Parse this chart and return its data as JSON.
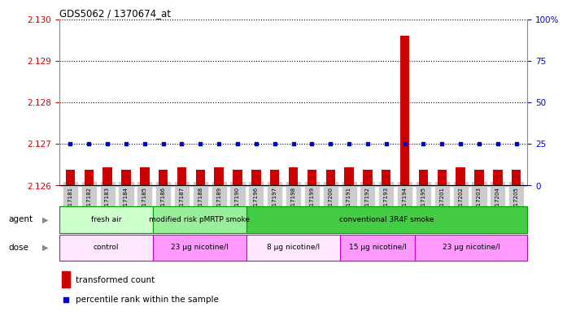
{
  "title": "GDS5062 / 1370674_at",
  "samples": [
    "GSM1217181",
    "GSM1217182",
    "GSM1217183",
    "GSM1217184",
    "GSM1217185",
    "GSM1217186",
    "GSM1217187",
    "GSM1217188",
    "GSM1217189",
    "GSM1217190",
    "GSM1217196",
    "GSM1217197",
    "GSM1217198",
    "GSM1217199",
    "GSM1217200",
    "GSM1217191",
    "GSM1217192",
    "GSM1217193",
    "GSM1217194",
    "GSM1217195",
    "GSM1217201",
    "GSM1217202",
    "GSM1217203",
    "GSM1217204",
    "GSM1217205"
  ],
  "transformed_count": [
    2.12638,
    2.12638,
    2.12643,
    2.12638,
    2.12643,
    2.12638,
    2.12643,
    2.12638,
    2.12643,
    2.12638,
    2.12638,
    2.12638,
    2.12643,
    2.12638,
    2.12638,
    2.12643,
    2.12638,
    2.12638,
    2.1296,
    2.12638,
    2.12638,
    2.12643,
    2.12638,
    2.12638,
    2.12638
  ],
  "percentile_rank": [
    25,
    25,
    25,
    25,
    25,
    25,
    25,
    25,
    25,
    25,
    25,
    25,
    25,
    25,
    25,
    25,
    25,
    25,
    25,
    25,
    25,
    25,
    25,
    25,
    25
  ],
  "ylim_left": [
    2.126,
    2.13
  ],
  "ylim_right": [
    0,
    100
  ],
  "yticks_left": [
    2.126,
    2.127,
    2.128,
    2.129,
    2.13
  ],
  "yticks_right": [
    0,
    25,
    50,
    75,
    100
  ],
  "baseline": 2.126,
  "agent_groups": [
    {
      "label": "fresh air",
      "start": 0,
      "end": 5,
      "color": "#CCFFCC"
    },
    {
      "label": "modified risk pMRTP smoke",
      "start": 5,
      "end": 10,
      "color": "#99EE99"
    },
    {
      "label": "conventional 3R4F smoke",
      "start": 10,
      "end": 25,
      "color": "#44CC44"
    }
  ],
  "dose_groups": [
    {
      "label": "control",
      "start": 0,
      "end": 5,
      "color": "#FFE8FF"
    },
    {
      "label": "23 μg nicotine/l",
      "start": 5,
      "end": 10,
      "color": "#FF99FF"
    },
    {
      "label": "8 μg nicotine/l",
      "start": 10,
      "end": 15,
      "color": "#FFE8FF"
    },
    {
      "label": "15 μg nicotine/l",
      "start": 15,
      "end": 19,
      "color": "#FF99FF"
    },
    {
      "label": "23 μg nicotine/l",
      "start": 19,
      "end": 25,
      "color": "#FF99FF"
    }
  ],
  "bar_color": "#CC0000",
  "dot_color": "#0000CC",
  "bg_color": "#FFFFFF",
  "plot_bg_color": "#FFFFFF",
  "tick_color_left": "#CC0000",
  "tick_color_right": "#0000CC",
  "agent_border_color": "#009900",
  "dose_border_color": "#CC00CC",
  "xtick_bg": "#CCCCCC"
}
